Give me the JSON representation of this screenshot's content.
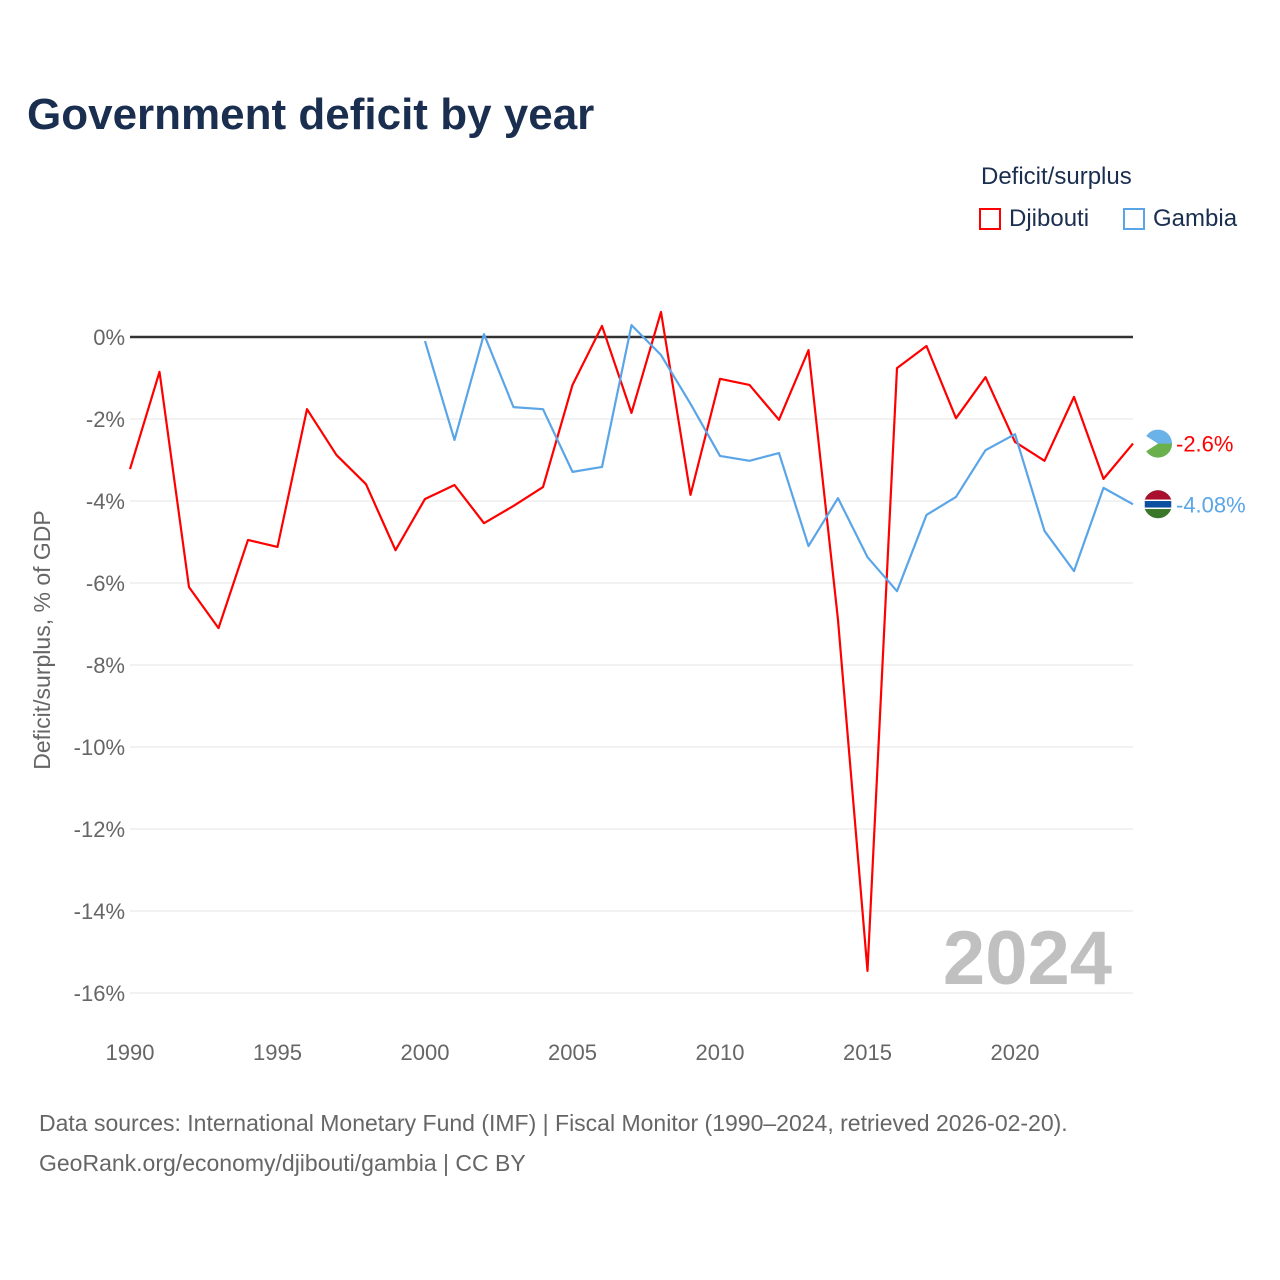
{
  "title": "Government deficit by year",
  "legend_title": "Deficit/surplus",
  "source_line1": "Data sources: International Monetary Fund (IMF) | Fiscal Monitor (1990–2024, retrieved 2026-02-20).",
  "source_line2": "GeoRank.org/economy/djibouti/gambia | CC BY",
  "chart_data": {
    "type": "line",
    "ylabel": "Deficit/surplus, % of GDP",
    "ylim": [
      -16,
      0
    ],
    "yticks": [
      "0%",
      "-2%",
      "-4%",
      "-6%",
      "-8%",
      "-10%",
      "-12%",
      "-14%",
      "-16%"
    ],
    "xticks": [
      "1990",
      "1995",
      "2000",
      "2005",
      "2010",
      "2015",
      "2020"
    ],
    "xlim": [
      1990,
      2024
    ],
    "year_label": "2024",
    "series": [
      {
        "name": "Djibouti",
        "color": "#ff0000",
        "end_label": "-2.6%",
        "start": 1990,
        "values": [
          -3.22,
          -0.85,
          -6.1,
          -7.1,
          -4.95,
          -5.12,
          -1.76,
          -2.88,
          -3.59,
          -5.2,
          -3.95,
          -3.61,
          -4.54,
          -4.12,
          -3.66,
          -1.17,
          0.27,
          -1.85,
          0.61,
          -3.85,
          -1.02,
          -1.17,
          -2.02,
          -0.32,
          -6.9,
          -15.46,
          -0.76,
          -0.22,
          -1.98,
          -0.98,
          -2.56,
          -3.02,
          -1.46,
          -3.46,
          -2.6
        ]
      },
      {
        "name": "Gambia",
        "color": "#5aa5e8",
        "end_label": "-4.08%",
        "start": 2000,
        "values": [
          -0.1,
          -2.51,
          0.07,
          -1.71,
          -1.76,
          -3.29,
          -3.17,
          0.29,
          -0.44,
          -1.63,
          -2.9,
          -3.02,
          -2.83,
          -5.1,
          -3.93,
          -5.37,
          -6.2,
          -4.34,
          -3.9,
          -2.76,
          -2.37,
          -4.73,
          -5.71,
          -3.68,
          -4.08
        ]
      }
    ]
  }
}
